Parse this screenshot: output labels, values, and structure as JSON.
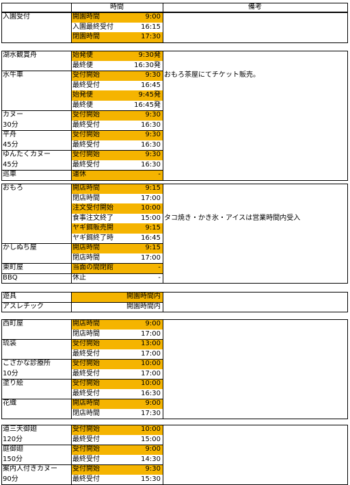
{
  "header": {
    "time_label": "時間",
    "note_label": "備考"
  },
  "colors": {
    "highlight": "#f5b400",
    "border": "#000000",
    "background": "#ffffff"
  },
  "sections": [
    {
      "rows": [
        {
          "name": "入園受付",
          "label": "開園時間",
          "time": "9:00",
          "hl": true
        },
        {
          "name": "",
          "label": "入園最終受付",
          "time": "16:15",
          "hl": false
        },
        {
          "name": "",
          "label": "閉園時間",
          "time": "17:30",
          "hl": true
        }
      ]
    },
    {
      "rows": [
        {
          "name": "湖水観賞舟",
          "label": "始発便",
          "time": "9:30発",
          "hl": true
        },
        {
          "name": "",
          "label": "最終便",
          "time": "16:30発",
          "hl": false
        },
        {
          "name": "水牛車",
          "label": "受付開始",
          "time": "9:30",
          "hl": true,
          "note": "おもろ茶屋にてチケット販売。"
        },
        {
          "name": "",
          "label": "最終受付",
          "time": "16:45",
          "hl": false
        },
        {
          "name": "",
          "label": "始発便",
          "time": "9:45発",
          "hl": true
        },
        {
          "name": "",
          "label": "最終便",
          "time": "16:45発",
          "hl": false
        },
        {
          "name": "カヌー",
          "label": "受付開始",
          "time": "9:30",
          "hl": true
        },
        {
          "name": "30分",
          "label": "最終受付",
          "time": "16:30",
          "hl": false
        },
        {
          "name": "平舟",
          "label": "受付開始",
          "time": "9:30",
          "hl": true
        },
        {
          "name": "45分",
          "label": "最終受付",
          "time": "16:30",
          "hl": false
        },
        {
          "name": "ゆんたくカヌー",
          "label": "受付開始",
          "time": "9:30",
          "hl": true
        },
        {
          "name": "45分",
          "label": "最終受付",
          "time": "16:30",
          "hl": false
        },
        {
          "name": "巡車",
          "label": "運休",
          "time": "-",
          "hl": true
        }
      ]
    },
    {
      "rows": [
        {
          "name": "おもろ",
          "label": "開店時間",
          "time": "9:15",
          "hl": true
        },
        {
          "name": "",
          "label": "閉店時間",
          "time": "17:00",
          "hl": false
        },
        {
          "name": "",
          "label": "注文受付開始",
          "time": "10:00",
          "hl": true
        },
        {
          "name": "",
          "label": "食事注文終了",
          "time": "15:00",
          "hl": false,
          "note": "タコ焼き・かき氷・アイスは営業時間内受入"
        },
        {
          "name": "",
          "label": "ヤギ餌販売開始",
          "time": "9:15",
          "hl": true
        },
        {
          "name": "",
          "label": "ヤギ餌終了時",
          "time": "16:45",
          "hl": false
        },
        {
          "name": "かしぬち屋",
          "label": "開店時間",
          "time": "9:15",
          "hl": true
        },
        {
          "name": "",
          "label": "閉店時間",
          "time": "17:00",
          "hl": false
        },
        {
          "name": "東町屋",
          "label": "当面の間閉館",
          "time": "-",
          "hl": true
        },
        {
          "name": "BBQ",
          "label": "休止",
          "time": "-",
          "hl": false
        }
      ]
    },
    {
      "rows": [
        {
          "name": "遊具",
          "label": "",
          "time": "開園時間内",
          "hl": true
        },
        {
          "name": "アスレチック",
          "label": "",
          "time": "開園時間内",
          "hl": false
        }
      ]
    },
    {
      "rows": [
        {
          "name": "西町屋",
          "label": "開店時間",
          "time": "9:00",
          "hl": true
        },
        {
          "name": "",
          "label": "閉店時間",
          "time": "17:00",
          "hl": false
        },
        {
          "name": "琉装",
          "label": "受付開始",
          "time": "13:00",
          "hl": true
        },
        {
          "name": "",
          "label": "最終受付",
          "time": "17:00",
          "hl": false
        },
        {
          "name": "こざかな診療所",
          "label": "受付開始",
          "time": "10:00",
          "hl": true
        },
        {
          "name": "10分",
          "label": "最終受付",
          "time": "17:00",
          "hl": false
        },
        {
          "name": "塗り絵",
          "label": "受付開始",
          "time": "10:00",
          "hl": true
        },
        {
          "name": "",
          "label": "最終受付",
          "time": "16:30",
          "hl": false
        },
        {
          "name": "花織",
          "label": "開店時間",
          "time": "9:00",
          "hl": true
        },
        {
          "name": "",
          "label": "閉店時間",
          "time": "17:30",
          "hl": false
        }
      ]
    },
    {
      "rows": [
        {
          "name": "道三天御廻",
          "label": "受付開始",
          "time": "10:00",
          "hl": true
        },
        {
          "name": "120分",
          "label": "最終受付",
          "time": "15:00",
          "hl": false
        },
        {
          "name": "庭御廻",
          "label": "受付開始",
          "time": "9:00",
          "hl": true
        },
        {
          "name": "150分",
          "label": "最終受付",
          "time": "14:30",
          "hl": false
        },
        {
          "name": "案内人付きカヌー",
          "label": "受付開始",
          "time": "9:30",
          "hl": true
        },
        {
          "name": "90分",
          "label": "最終受付",
          "time": "15:30",
          "hl": false
        }
      ]
    }
  ]
}
